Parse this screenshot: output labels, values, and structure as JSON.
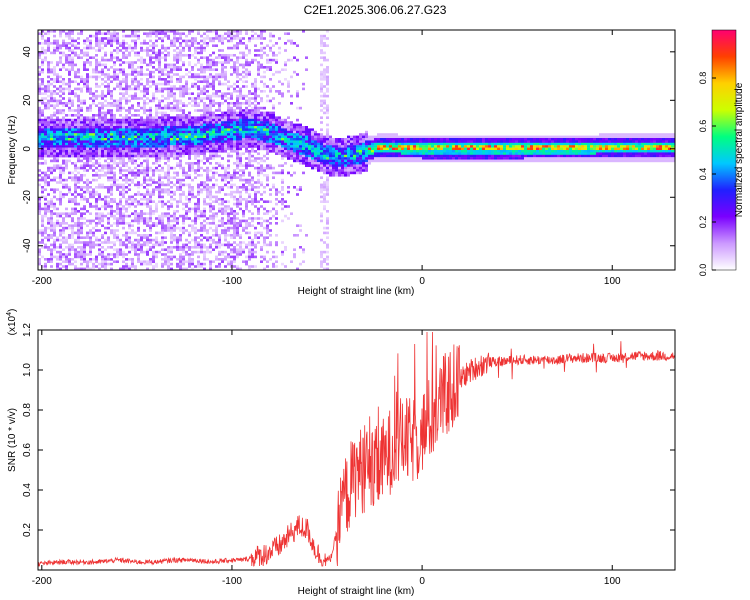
{
  "title": "C2E1.2025.306.06.27.G23",
  "chart_data": [
    {
      "type": "heatmap",
      "title": "C2E1.2025.306.06.27.G23",
      "xlabel": "Height of straight line (km)",
      "ylabel": "Frequency (Hz)",
      "xlim": [
        -202,
        133
      ],
      "ylim": [
        -50,
        49
      ],
      "xticks": [
        -200,
        -100,
        0,
        100
      ],
      "xtick_labels": [
        "-200",
        "-100",
        "0",
        "100"
      ],
      "yticks": [
        -40,
        -20,
        0,
        20,
        40
      ],
      "ytick_labels": [
        "-40",
        "-20",
        "0",
        "20",
        "40"
      ],
      "ridge": {
        "description": "center frequency of the dominant energy band vs height",
        "x": [
          -200,
          -150,
          -120,
          -100,
          -90,
          -80,
          -70,
          -60,
          -52,
          -45,
          -35,
          -25,
          -15,
          0,
          50,
          100,
          133
        ],
        "y": [
          5,
          5,
          6,
          8,
          9,
          7,
          4,
          1,
          -2,
          -3,
          -2,
          1,
          1,
          0.5,
          0.5,
          1,
          1
        ]
      },
      "colorbar": {
        "label": "Normalized spectral amplitude",
        "range": [
          0,
          1
        ],
        "ticks": [
          0.0,
          0.2,
          0.4,
          0.6,
          0.8
        ],
        "tick_labels": [
          "0.0",
          "0.2",
          "0.4",
          "0.6",
          "0.8"
        ],
        "colormap": [
          "#ffffff",
          "#cc99ff",
          "#7a00ff",
          "#2020ff",
          "#00c8ff",
          "#00ff80",
          "#ccff00",
          "#ffd000",
          "#ff4000",
          "#ff0070"
        ]
      }
    },
    {
      "type": "line",
      "xlabel": "Height of straight line (km)",
      "ylabel": "SNR (10 * v/v)",
      "y_multiplier": "(x10",
      "y_exponent": "4",
      "y_multiplier_close": ")",
      "xlim": [
        -202,
        133
      ],
      "ylim": [
        0,
        1.2
      ],
      "xticks": [
        -200,
        -100,
        0,
        100
      ],
      "xtick_labels": [
        "-200",
        "-100",
        "0",
        "100"
      ],
      "yticks": [
        0.2,
        0.4,
        0.6,
        0.8,
        1.0,
        1.2
      ],
      "ytick_labels": [
        "0.2",
        "0.4",
        "0.6",
        "0.8",
        "1.0",
        "1.2"
      ],
      "color": "#ee3333",
      "series": [
        {
          "name": "SNR",
          "x": [
            -202,
            -190,
            -180,
            -170,
            -160,
            -150,
            -140,
            -130,
            -120,
            -110,
            -100,
            -95,
            -90,
            -85,
            -80,
            -75,
            -70,
            -65,
            -60,
            -57,
            -54,
            -51,
            -48,
            -45,
            -42,
            -38,
            -34,
            -30,
            -26,
            -22,
            -18,
            -14,
            -10,
            -6,
            -2,
            2,
            6,
            10,
            14,
            18,
            22,
            26,
            30,
            35,
            40,
            50,
            60,
            70,
            80,
            90,
            100,
            110,
            120,
            133
          ],
          "y": [
            0.03,
            0.04,
            0.04,
            0.04,
            0.05,
            0.04,
            0.04,
            0.05,
            0.05,
            0.04,
            0.05,
            0.05,
            0.06,
            0.07,
            0.09,
            0.12,
            0.17,
            0.22,
            0.2,
            0.12,
            0.07,
            0.04,
            0.06,
            0.18,
            0.32,
            0.42,
            0.5,
            0.5,
            0.48,
            0.52,
            0.58,
            0.63,
            0.65,
            0.64,
            0.66,
            0.72,
            0.78,
            0.84,
            0.89,
            0.93,
            0.97,
            1.0,
            1.02,
            1.04,
            1.04,
            1.05,
            1.05,
            1.05,
            1.06,
            1.06,
            1.06,
            1.07,
            1.07,
            1.07
          ]
        }
      ]
    }
  ]
}
